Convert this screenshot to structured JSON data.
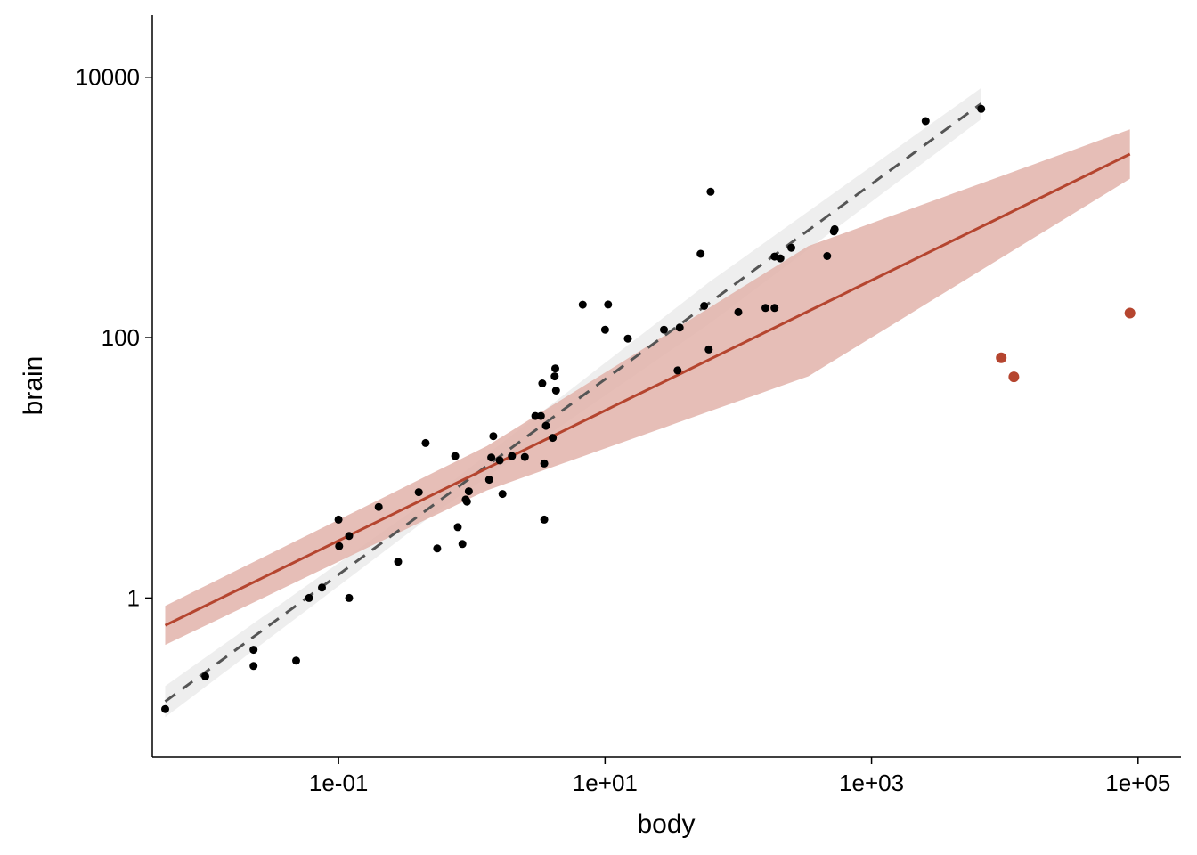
{
  "chart_data": {
    "type": "scatter",
    "title": "",
    "xlabel": "body",
    "ylabel": "brain",
    "x_scale": "log10",
    "y_scale": "log10",
    "xlim": [
      0.004,
      210000
    ],
    "ylim": [
      0.06,
      30000
    ],
    "x_ticks": [
      {
        "value": 0.1,
        "label": "1e-01"
      },
      {
        "value": 10,
        "label": "1e+01"
      },
      {
        "value": 1000,
        "label": "1e+03"
      },
      {
        "value": 100000,
        "label": "1e+05"
      }
    ],
    "y_ticks": [
      {
        "value": 1,
        "label": "1"
      },
      {
        "value": 100,
        "label": "100"
      },
      {
        "value": 10000,
        "label": "10000"
      }
    ],
    "grid": false,
    "legend": "none",
    "colors": {
      "points": "#000000",
      "outliers": "#b5452f",
      "robust_line": "#b5452f",
      "robust_band": "#e2b3aa",
      "ols_line": "#555555",
      "ols_band": "#ebebeb"
    },
    "points": [
      [
        0.005,
        0.14
      ],
      [
        0.01,
        0.25
      ],
      [
        0.023,
        0.3
      ],
      [
        0.023,
        0.4
      ],
      [
        0.048,
        0.33
      ],
      [
        0.06,
        1.0
      ],
      [
        0.075,
        1.2
      ],
      [
        0.1,
        4.0
      ],
      [
        0.101,
        2.5
      ],
      [
        0.12,
        3.0
      ],
      [
        0.12,
        1.0
      ],
      [
        0.2,
        5.0
      ],
      [
        0.28,
        1.9
      ],
      [
        0.4,
        6.5
      ],
      [
        0.45,
        15.5
      ],
      [
        0.55,
        2.4
      ],
      [
        0.75,
        12.3
      ],
      [
        0.785,
        3.5
      ],
      [
        0.85,
        2.6
      ],
      [
        0.9,
        5.7
      ],
      [
        0.92,
        5.5
      ],
      [
        0.95,
        6.6
      ],
      [
        1.35,
        8.1
      ],
      [
        1.4,
        12.0
      ],
      [
        1.45,
        17.5
      ],
      [
        1.62,
        11.4
      ],
      [
        1.7,
        6.3
      ],
      [
        2.0,
        12.3
      ],
      [
        2.5,
        12.1
      ],
      [
        3.0,
        25.0
      ],
      [
        3.3,
        25.0
      ],
      [
        3.38,
        44.5
      ],
      [
        3.5,
        10.8
      ],
      [
        3.5,
        4.0
      ],
      [
        3.6,
        21.0
      ],
      [
        4.05,
        17.0
      ],
      [
        4.19,
        50.4
      ],
      [
        4.235,
        58.0
      ],
      [
        4.288,
        39.2
      ],
      [
        6.8,
        179.0
      ],
      [
        10.0,
        115.0
      ],
      [
        10.55,
        179.5
      ],
      [
        14.83,
        98.2
      ],
      [
        27.66,
        115.0
      ],
      [
        35.0,
        56.0
      ],
      [
        36.33,
        119.5
      ],
      [
        52.16,
        440.0
      ],
      [
        55.5,
        175.0
      ],
      [
        60.0,
        81.0
      ],
      [
        62.0,
        1320.0
      ],
      [
        100.0,
        157.0
      ],
      [
        160.0,
        169.0
      ],
      [
        187.1,
        419.0
      ],
      [
        187.1,
        169.0
      ],
      [
        207.0,
        406.0
      ],
      [
        250.0,
        490.0
      ],
      [
        465.0,
        423.0
      ],
      [
        521.0,
        655.0
      ],
      [
        529.0,
        680.0
      ],
      [
        2547.0,
        4603.0
      ],
      [
        6654.0,
        5712.0
      ]
    ],
    "outliers": [
      [
        9400.0,
        70.0
      ],
      [
        11700.0,
        50.0
      ],
      [
        87000.0,
        154.5
      ]
    ],
    "robust_fit": {
      "x_range": [
        0.005,
        87000.0
      ],
      "intercept_log10": 0.94,
      "slope_log10": 0.5,
      "band_halfwidth_log10": [
        0.15,
        0.17,
        0.5,
        0.19
      ]
    },
    "ols_fit": {
      "x_range": [
        0.005,
        6654.0
      ],
      "intercept_log10": 0.93,
      "slope_log10": 0.75,
      "band_halfwidth_log10": [
        0.12,
        0.07,
        0.16,
        0.12
      ]
    }
  }
}
